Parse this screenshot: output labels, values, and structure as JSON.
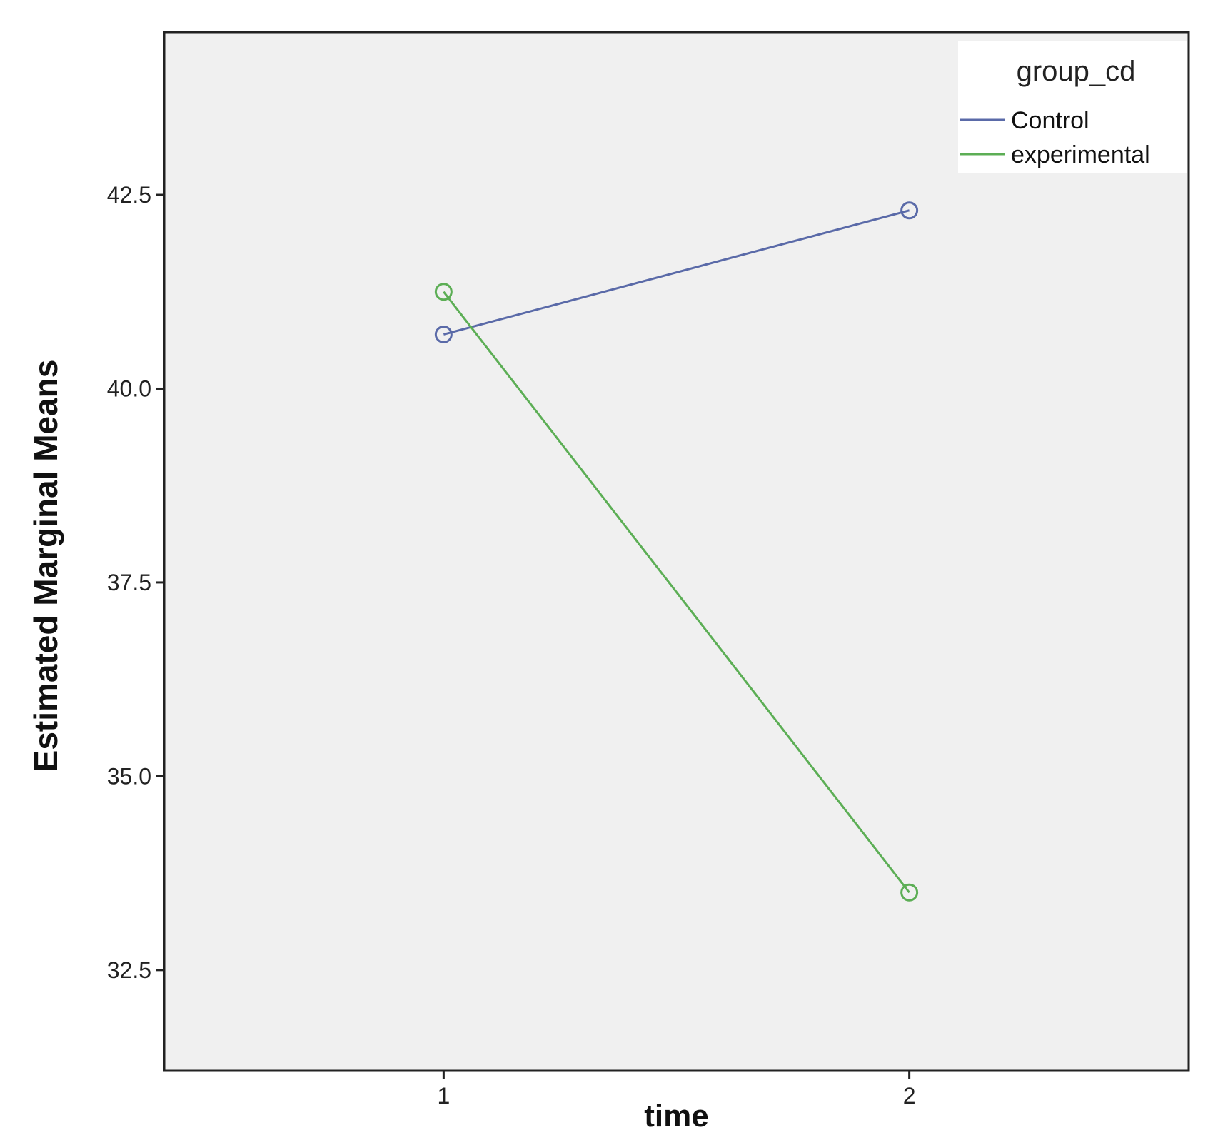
{
  "chart_data": {
    "type": "line",
    "x": [
      1,
      2
    ],
    "x_tick_labels": [
      "1",
      "2"
    ],
    "xlabel": "time",
    "ylabel": "Estimated Marginal Means",
    "ylim": [
      31.2,
      44.6
    ],
    "y_ticks": [
      32.5,
      35.0,
      37.5,
      40.0,
      42.5
    ],
    "y_tick_labels": [
      "32.5",
      "35.0",
      "37.5",
      "40.0",
      "42.5"
    ],
    "grid": false,
    "legend": {
      "title": "group_cd",
      "placement": "top-right"
    },
    "series": [
      {
        "name": "Control",
        "color": "#5a6aa8",
        "values": [
          40.7,
          42.3
        ]
      },
      {
        "name": "experimental",
        "color": "#5cae55",
        "values": [
          41.25,
          33.5
        ]
      }
    ]
  },
  "colors": {
    "plot_background": "#f0f0f0",
    "axis": "#222222"
  }
}
